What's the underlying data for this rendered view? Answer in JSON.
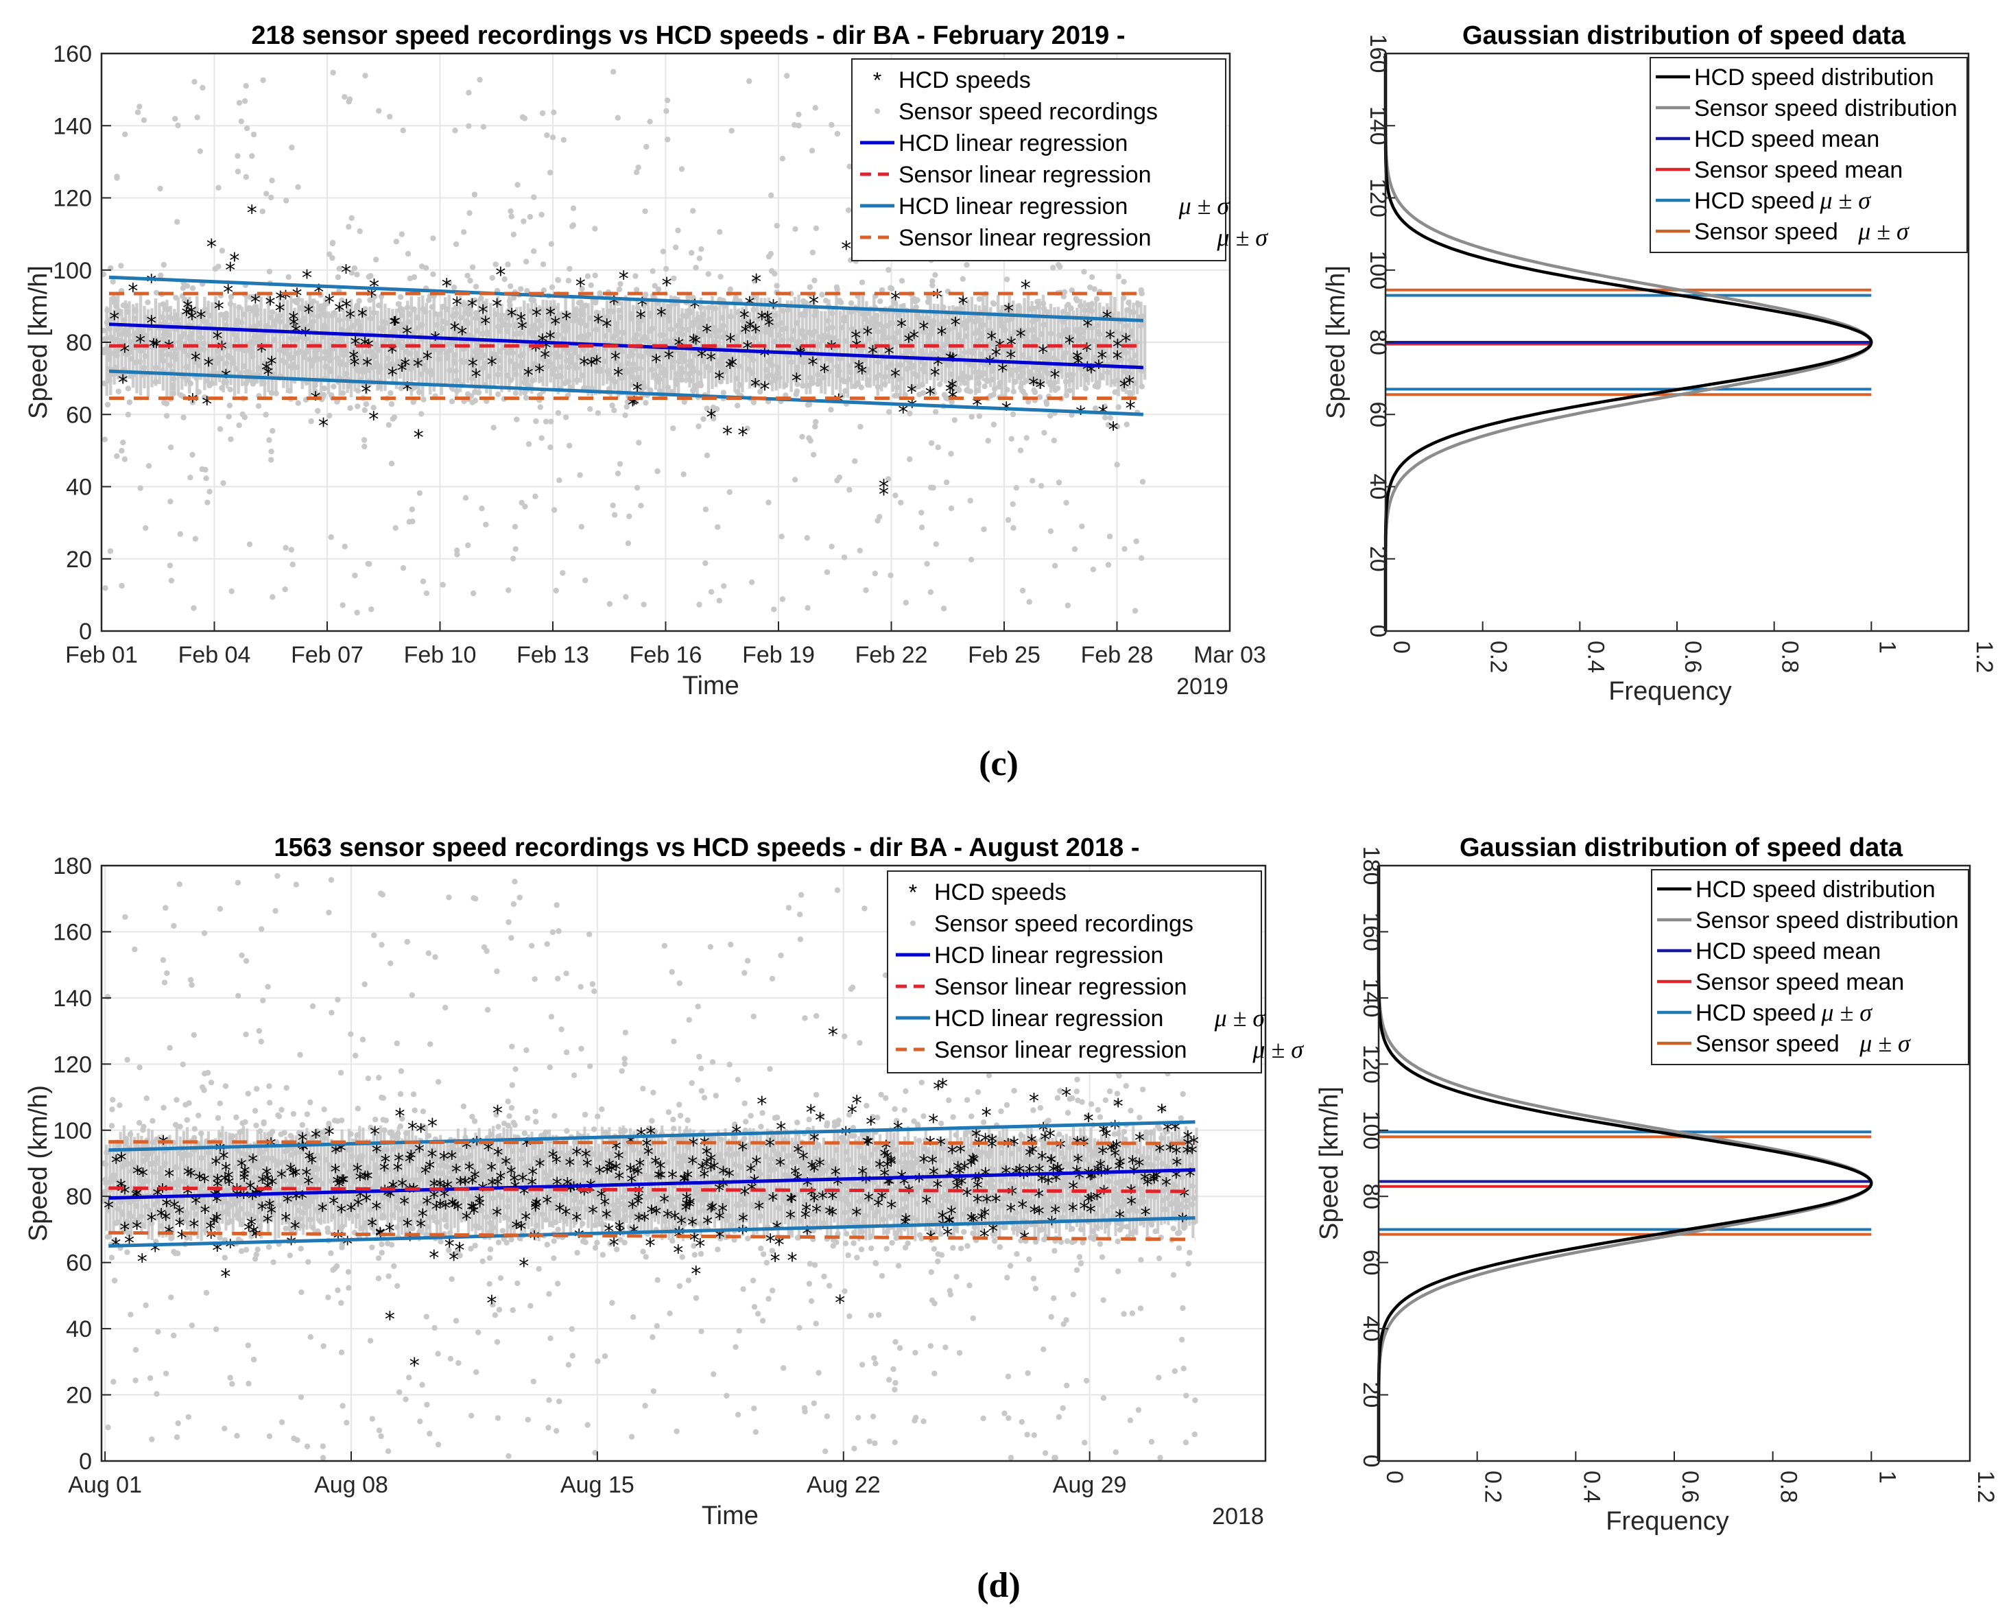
{
  "figure": {
    "captions": [
      "(c)",
      "(d)"
    ]
  },
  "chart_data": [
    {
      "id": "c-time",
      "type": "scatter",
      "title": "218 sensor speed recordings vs HCD speeds - dir BA - February 2019 -",
      "xlabel": "Time",
      "ylabel": "Speed [km/h]",
      "x_tick_labels": [
        "Feb 01",
        "Feb 04",
        "Feb 07",
        "Feb 10",
        "Feb 13",
        "Feb 16",
        "Feb 19",
        "Feb 22",
        "Feb 25",
        "Feb 28",
        "Mar 03"
      ],
      "x_secondary_label": "2019",
      "xlim_days": [
        0,
        30
      ],
      "data_end_day": 27.7,
      "ylim": [
        0,
        160
      ],
      "yticks": [
        0,
        20,
        40,
        60,
        80,
        100,
        120,
        140,
        160
      ],
      "grid": true,
      "legend_position": "top-right",
      "legend": [
        {
          "label": "HCD speeds",
          "style": "marker-black"
        },
        {
          "label": "Sensor speed recordings",
          "style": "marker-gray"
        },
        {
          "label": "HCD linear regression",
          "style": "solid-blue"
        },
        {
          "label": "Sensor linear regression",
          "style": "dashed-red"
        },
        {
          "label": "HCD linear regression",
          "sigma": "μ ± σ",
          "style": "solid-lightblue"
        },
        {
          "label": "Sensor linear regression",
          "sigma": "μ ± σ",
          "style": "dashed-orange"
        }
      ],
      "series": [
        {
          "name": "HCD linear regression",
          "x": [
            0.2,
            27.7
          ],
          "y": [
            85,
            73
          ]
        },
        {
          "name": "Sensor linear regression",
          "x": [
            0.2,
            27.7
          ],
          "y": [
            79,
            79
          ]
        },
        {
          "name": "HCD linear regression μ+σ",
          "x": [
            0.2,
            27.7
          ],
          "y": [
            98,
            86
          ]
        },
        {
          "name": "HCD linear regression μ-σ",
          "x": [
            0.2,
            27.7
          ],
          "y": [
            72,
            60
          ]
        },
        {
          "name": "Sensor linear regression μ+σ",
          "x": [
            0.2,
            27.7
          ],
          "y": [
            93.5,
            93.5
          ]
        },
        {
          "name": "Sensor linear regression μ-σ",
          "x": [
            0.2,
            27.7
          ],
          "y": [
            64.5,
            64.5
          ]
        }
      ],
      "sensor_cloud": {
        "center": 79,
        "core_sigma": 9,
        "outlier_range": [
          5,
          155
        ],
        "n_points_drawn": 2600
      },
      "hcd_points": {
        "count": 218,
        "approx_range": [
          38,
          117
        ],
        "highlights": [
          {
            "day": 4,
            "y": 116
          },
          {
            "day": 19.8,
            "y": 106
          },
          {
            "day": 20.8,
            "y": 40
          },
          {
            "day": 20.8,
            "y": 38
          },
          {
            "day": 5.9,
            "y": 57
          }
        ]
      }
    },
    {
      "id": "c-dist",
      "type": "line",
      "title": "Gaussian distribution of speed data",
      "xlabel": "Frequency",
      "ylabel": "Speed [km/h]",
      "xlim": [
        0,
        1.2
      ],
      "xticks": [
        0,
        0.2,
        0.4,
        0.6,
        0.8,
        1,
        1.2
      ],
      "xtick_labels": [
        "0",
        "0.2",
        "0.4",
        "0.6",
        "0.8",
        "1",
        "1.2"
      ],
      "ylim": [
        0,
        160
      ],
      "yticks": [
        0,
        20,
        40,
        60,
        80,
        100,
        120,
        140,
        160
      ],
      "legend_position": "top-right",
      "legend": [
        {
          "label": "HCD speed distribution",
          "color": "#000000"
        },
        {
          "label": "Sensor speed distribution",
          "color": "#8c8c8c"
        },
        {
          "label": "HCD speed mean",
          "color": "#1a1aa0"
        },
        {
          "label": "Sensor speed mean",
          "color": "#e0242b"
        },
        {
          "label": "HCD speed",
          "sigma": "μ ± σ",
          "color": "#1f77b4"
        },
        {
          "label": "Sensor speed",
          "sigma": "μ ± σ",
          "color": "#c8642a"
        }
      ],
      "series": [
        {
          "name": "HCD speed distribution",
          "mean": 80,
          "sigma": 13
        },
        {
          "name": "Sensor speed distribution",
          "mean": 80,
          "sigma": 14.5
        }
      ],
      "hlines": {
        "hcd_mean": 80,
        "sensor_mean": 79.5,
        "hcd_sigma": [
          93,
          67
        ],
        "sensor_sigma": [
          94.5,
          65.5
        ]
      }
    },
    {
      "id": "d-time",
      "type": "scatter",
      "title": "1563 sensor speed recordings vs HCD speeds - dir BA - August 2018 -",
      "xlabel": "Time",
      "ylabel": "Speed (km/h)",
      "x_tick_labels": [
        "Aug 01",
        "Aug 08",
        "Aug 15",
        "Aug 22",
        "Aug 29"
      ],
      "x_tick_days": [
        0,
        7,
        14,
        21,
        28
      ],
      "x_secondary_label": "2018",
      "xlim_days": [
        -0.1,
        33
      ],
      "data_end_day": 31,
      "ylim": [
        0,
        180
      ],
      "yticks": [
        0,
        20,
        40,
        60,
        80,
        100,
        120,
        140,
        160,
        180
      ],
      "grid": true,
      "legend_position": "top-right",
      "legend": [
        {
          "label": "HCD speeds",
          "style": "marker-black"
        },
        {
          "label": "Sensor speed recordings",
          "style": "marker-gray"
        },
        {
          "label": "HCD linear regression",
          "style": "solid-blue"
        },
        {
          "label": "Sensor linear regression",
          "style": "dashed-red"
        },
        {
          "label": "HCD linear regression",
          "sigma": "μ ± σ",
          "style": "solid-lightblue"
        },
        {
          "label": "Sensor linear regression",
          "sigma": "μ ± σ",
          "style": "dashed-orange"
        }
      ],
      "series": [
        {
          "name": "HCD linear regression",
          "x": [
            0.1,
            31
          ],
          "y": [
            79.5,
            88
          ]
        },
        {
          "name": "Sensor linear regression",
          "x": [
            0.1,
            31
          ],
          "y": [
            82.5,
            81.5
          ]
        },
        {
          "name": "HCD linear regression μ+σ",
          "x": [
            0.1,
            31
          ],
          "y": [
            94,
            102.5
          ]
        },
        {
          "name": "HCD linear regression μ-σ",
          "x": [
            0.1,
            31
          ],
          "y": [
            65,
            73.5
          ]
        },
        {
          "name": "Sensor linear regression μ+σ",
          "x": [
            0.1,
            31
          ],
          "y": [
            96.5,
            96
          ]
        },
        {
          "name": "Sensor linear regression μ-σ",
          "x": [
            0.1,
            31
          ],
          "y": [
            69,
            67
          ]
        }
      ],
      "sensor_cloud": {
        "center": 84,
        "core_sigma": 11,
        "outlier_range": [
          0,
          178
        ],
        "n_points_drawn": 2800
      },
      "hcd_points": {
        "count": 540,
        "approx_range": [
          29,
          129
        ],
        "highlights": [
          {
            "day": 20.7,
            "y": 129
          },
          {
            "day": 8.1,
            "y": 43
          },
          {
            "day": 8.8,
            "y": 29
          },
          {
            "day": 20.9,
            "y": 48
          }
        ]
      }
    },
    {
      "id": "d-dist",
      "type": "line",
      "title": "Gaussian distribution of speed data",
      "xlabel": "Frequency",
      "ylabel": "Speed [km/h]",
      "xlim": [
        0,
        1.2
      ],
      "xticks": [
        0,
        0.2,
        0.4,
        0.6,
        0.8,
        1,
        1.2
      ],
      "xtick_labels": [
        "0",
        "0.2",
        "0.4",
        "0.6",
        "0.8",
        "1",
        "1.2"
      ],
      "ylim": [
        0,
        180
      ],
      "yticks": [
        0,
        20,
        40,
        60,
        80,
        100,
        120,
        140,
        160,
        180
      ],
      "legend_position": "top-right",
      "legend": [
        {
          "label": "HCD speed distribution",
          "color": "#000000"
        },
        {
          "label": "Sensor speed distribution",
          "color": "#8c8c8c"
        },
        {
          "label": "HCD speed mean",
          "color": "#1a1aa0"
        },
        {
          "label": "Sensor speed mean",
          "color": "#e0242b"
        },
        {
          "label": "HCD speed",
          "sigma": "μ ± σ",
          "color": "#1f77b4"
        },
        {
          "label": "Sensor speed",
          "sigma": "μ ± σ",
          "color": "#c8642a"
        }
      ],
      "series": [
        {
          "name": "HCD speed distribution",
          "mean": 84,
          "sigma": 14.5
        },
        {
          "name": "Sensor speed distribution",
          "mean": 84,
          "sigma": 15.5
        }
      ],
      "hlines": {
        "hcd_mean": 84.5,
        "sensor_mean": 83,
        "hcd_sigma": [
          99.5,
          70
        ],
        "sensor_sigma": [
          98,
          68.5
        ]
      }
    }
  ],
  "colors": {
    "hcd_marker": "#000000",
    "sensor_marker": "#c8c8c8",
    "hcd_regression": "#0000d0",
    "sensor_regression": "#e0242b",
    "hcd_sigma": "#1f77b4",
    "sensor_sigma": "#d9622a",
    "grid": "#e6e6e6",
    "axis": "#262626",
    "hcd_dist": "#000000",
    "sensor_dist": "#8c8c8c",
    "hcd_mean_line": "#1a1aa0",
    "sensor_mean_line": "#e0242b"
  }
}
